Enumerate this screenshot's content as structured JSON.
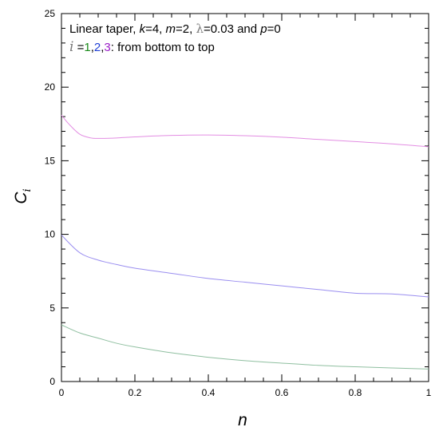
{
  "chart_data": {
    "type": "line",
    "xlabel": "n",
    "ylabel": {
      "base": "C",
      "sub": "i"
    },
    "xlim": [
      0,
      1
    ],
    "ylim": [
      0,
      25
    ],
    "x_ticks": [
      "0",
      "0.2",
      "0.4",
      "0.6",
      "0.8",
      "1"
    ],
    "y_ticks": [
      "0",
      "5",
      "10",
      "15",
      "20",
      "25"
    ],
    "x_minor_step": 0.05,
    "y_minor_step": 1,
    "grid": false,
    "annotation": {
      "line1": {
        "t1": "Linear taper, ",
        "k": "k",
        "t2": "=4, ",
        "m": "m",
        "t3": "=2, ",
        "lambda": "λ",
        "t4": "=0.03 and ",
        "p": "p",
        "t5": "=0"
      },
      "line2": {
        "i": "i",
        "eq": " =",
        "n1": "1",
        "c1": ",",
        "n2": "2",
        "c2": ",",
        "n3": "3",
        "tail": ": from bottom to top"
      }
    },
    "annotation_colors": {
      "n1": "#1a8a1a",
      "n2": "#1f3fd6",
      "n3": "#9b1fc9"
    },
    "series": [
      {
        "color": "#8fbfa0",
        "x": [
          0,
          0.05,
          0.1,
          0.15,
          0.2,
          0.3,
          0.4,
          0.5,
          0.6,
          0.7,
          0.8,
          0.9,
          1.0
        ],
        "y": [
          3.85,
          3.3,
          2.95,
          2.6,
          2.35,
          1.95,
          1.65,
          1.42,
          1.25,
          1.1,
          1.0,
          0.92,
          0.85
        ]
      },
      {
        "color": "#9a8ef0",
        "x": [
          0,
          0.05,
          0.1,
          0.15,
          0.2,
          0.3,
          0.4,
          0.5,
          0.6,
          0.7,
          0.8,
          0.9,
          1.0
        ],
        "y": [
          9.95,
          8.75,
          8.25,
          7.95,
          7.7,
          7.35,
          7.0,
          6.75,
          6.5,
          6.25,
          6.0,
          5.95,
          5.75
        ]
      },
      {
        "color": "#e38ee3",
        "x": [
          0,
          0.02,
          0.05,
          0.08,
          0.1,
          0.15,
          0.2,
          0.3,
          0.4,
          0.5,
          0.6,
          0.7,
          0.8,
          0.9,
          1.0
        ],
        "y": [
          18.1,
          17.5,
          16.8,
          16.55,
          16.52,
          16.55,
          16.62,
          16.72,
          16.75,
          16.7,
          16.6,
          16.45,
          16.3,
          16.15,
          15.95
        ]
      }
    ]
  }
}
